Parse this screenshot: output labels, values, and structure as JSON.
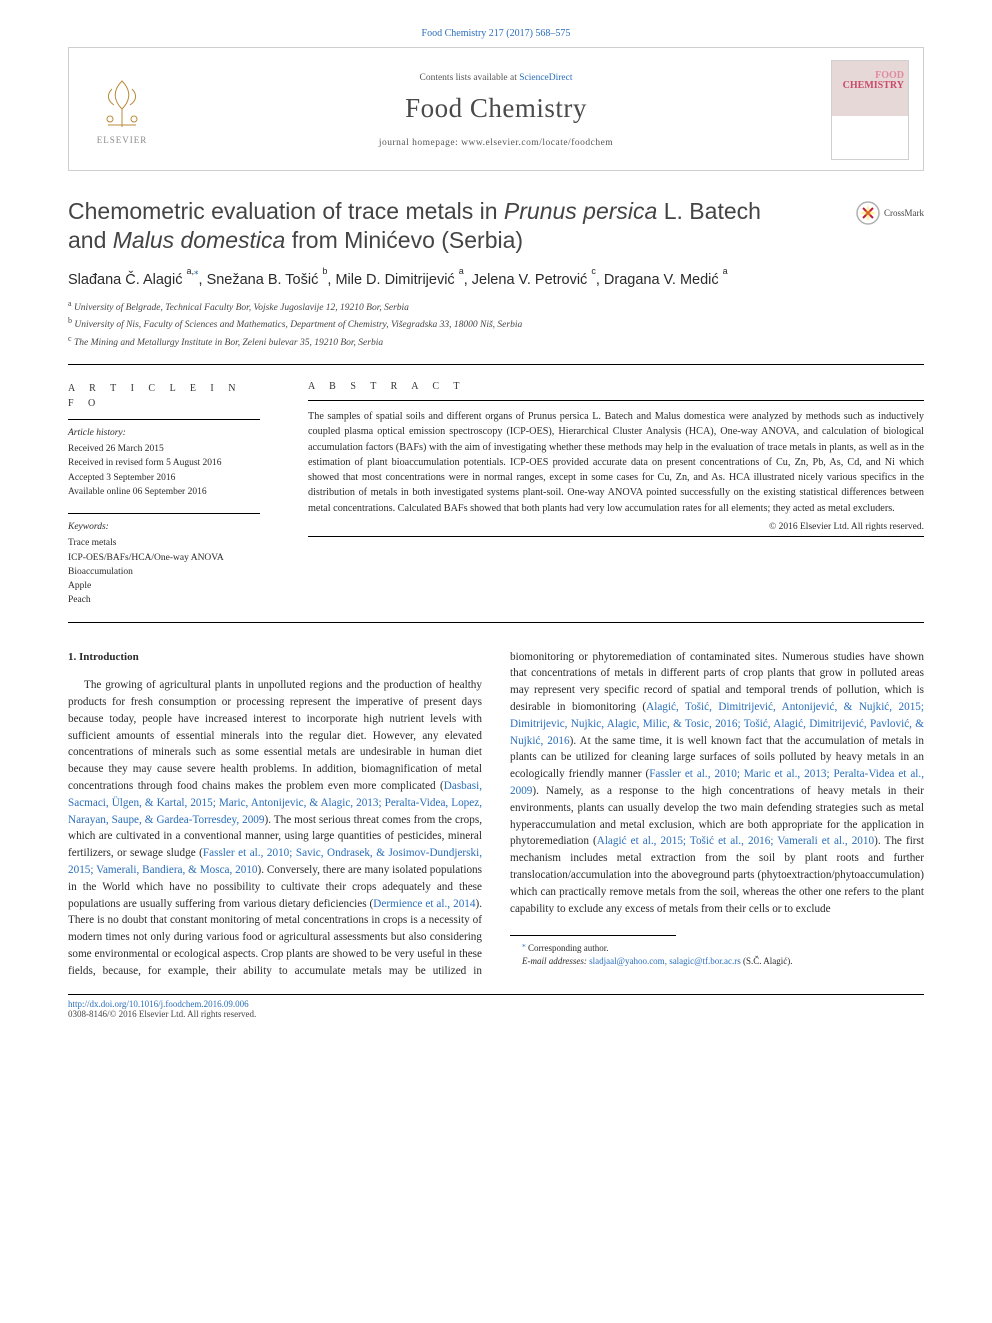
{
  "header": {
    "citation": "Food Chemistry 217 (2017) 568–575",
    "contents_line_pre": "Contents lists available at ",
    "sciencedirect": "ScienceDirect",
    "journal_name": "Food Chemistry",
    "homepage_label": "journal homepage: ",
    "homepage_url": "www.elsevier.com/locate/foodchem",
    "publisher": "ELSEVIER",
    "cover_top": "FOOD",
    "cover_bottom": "CHEMISTRY"
  },
  "crossmark": {
    "label": "CrossMark"
  },
  "article": {
    "title_pre": "Chemometric evaluation of trace metals in ",
    "species1": "Prunus persica",
    "title_mid1": " L. Batech and ",
    "species2": "Malus domestica",
    "title_post": " from Minićevo (Serbia)",
    "authors_html": "Slađana Č. Alagić <sup>a,</sup><sup class='author-star'>⁎</sup>, Snežana B. Tošić <sup>b</sup>, Mile D. Dimitrijević <sup>a</sup>, Jelena V. Petrović <sup>c</sup>, Dragana V. Medić <sup>a</sup>",
    "affiliations": {
      "a": "University of Belgrade, Technical Faculty Bor, Vojske Jugoslavije 12, 19210 Bor, Serbia",
      "b": "University of Nis, Faculty of Sciences and Mathematics, Department of Chemistry, Višegradska 33, 18000 Niš, Serbia",
      "c": "The Mining and Metallurgy Institute in Bor, Zeleni bulevar 35, 19210 Bor, Serbia"
    }
  },
  "info": {
    "heading": "A R T I C L E   I N F O",
    "history_heading": "Article history:",
    "history": [
      "Received 26 March 2015",
      "Received in revised form 5 August 2016",
      "Accepted 3 September 2016",
      "Available online 06 September 2016"
    ],
    "keywords_heading": "Keywords:",
    "keywords": [
      "Trace metals",
      "ICP-OES/BAFs/HCA/One-way ANOVA",
      "Bioaccumulation",
      "Apple",
      "Peach"
    ]
  },
  "abstract": {
    "heading": "A B S T R A C T",
    "text": "The samples of spatial soils and different organs of Prunus persica L. Batech and Malus domestica were analyzed by methods such as inductively coupled plasma optical emission spectroscopy (ICP-OES), Hierarchical Cluster Analysis (HCA), One-way ANOVA, and calculation of biological accumulation factors (BAFs) with the aim of investigating whether these methods may help in the evaluation of trace metals in plants, as well as in the estimation of plant bioaccumulation potentials. ICP-OES provided accurate data on present concentrations of Cu, Zn, Pb, As, Cd, and Ni which showed that most concentrations were in normal ranges, except in some cases for Cu, Zn, and As. HCA illustrated nicely various specifics in the distribution of metals in both investigated systems plant-soil. One-way ANOVA pointed successfully on the existing statistical differences between metal concentrations. Calculated BAFs showed that both plants had very low accumulation rates for all elements; they acted as metal excluders.",
    "copyright": "© 2016 Elsevier Ltd. All rights reserved."
  },
  "body": {
    "section_heading": "1. Introduction",
    "p1_a": "The growing of agricultural plants in unpolluted regions and the production of healthy products for fresh consumption or processing represent the imperative of present days because today, people have increased interest to incorporate high nutrient levels with sufficient amounts of essential minerals into the regular diet. However, any elevated concentrations of minerals such as some essential metals are undesirable in human diet because they may cause severe health problems. In addition, biomagnification of metal concentrations through food chains makes the problem even more complicated (",
    "r1": "Dasbasi, Sacmaci, Ülgen, & Kartal, 2015; Maric, Antonijevic, & Alagic, 2013; Peralta-Videa, Lopez, Narayan, Saupe, & Gardea-Torresdey, 2009",
    "p1_b": "). The most serious threat comes from the crops, which are cultivated in a conventional manner, using large quantities of pesticides, mineral fertilizers, or sewage sludge (",
    "r2": "Fassler et al., 2010; Savic, Ondrasek, & Josimov-Dundjerski, 2015; Vamerali, Bandiera, & Mosca, 2010",
    "p1_c": "). Conversely, there are many isolated populations in the World which have no possibility to cultivate their crops adequately and these populations are usually suffering from various dietary deficiencies (",
    "r3": "Dermience et al., 2014",
    "p1_d": "). There is no doubt that constant monitoring of metal concentrations",
    "p2_a": "in crops is a necessity of modern times not only during various food or agricultural assessments but also considering some environmental or ecological aspects. Crop plants are showed to be very useful in these fields, because, for example, their ability to accumulate metals may be utilized in biomonitoring or phytoremediation of contaminated sites. Numerous studies have shown that concentrations of metals in different parts of crop plants that grow in polluted areas may represent very specific record of spatial and temporal trends of pollution, which is desirable in biomonitoring (",
    "r4": "Alagić, Tošić, Dimitrijević, Antonijević, & Nujkić, 2015; Dimitrijevic, Nujkic, Alagic, Milic, & Tosic, 2016; Tošić, Alagić, Dimitrijević, Pavlović, & Nujkić, 2016",
    "p2_b": "). At the same time, it is well known fact that the accumulation of metals in plants can be utilized for cleaning large surfaces of soils polluted by heavy metals in an ecologically friendly manner (",
    "r5": "Fassler et al., 2010; Maric et al., 2013; Peralta-Videa et al., 2009",
    "p2_c": "). Namely, as a response to the high concentrations of heavy metals in their environments, plants can usually develop the two main defending strategies such as metal hyperaccumulation and metal exclusion, which are both appropriate for the application in phytoremediation (",
    "r6": "Alagić et al., 2015; Tošić et al., 2016; Vamerali et al., 2010",
    "p2_d": "). The first mechanism includes metal extraction from the soil by plant roots and further translocation/accumulation into the aboveground parts (phytoextraction/phytoaccumulation) which can practically remove metals from the soil, whereas the other one refers to the plant capability to exclude any excess of metals from their cells or to exclude"
  },
  "footnotes": {
    "corr": "Corresponding author.",
    "email_label": "E-mail addresses:",
    "emails": "sladjaal@yahoo.com, salagic@tf.bor.ac.rs",
    "email_name": "(S.Č. Alagić)."
  },
  "footer": {
    "doi": "http://dx.doi.org/10.1016/j.foodchem.2016.09.006",
    "issn_copy": "0308-8146/© 2016 Elsevier Ltd. All rights reserved."
  },
  "colors": {
    "link": "#2a6ebb",
    "text": "#2a2a2a",
    "cover_accent": "#c94a6a"
  }
}
